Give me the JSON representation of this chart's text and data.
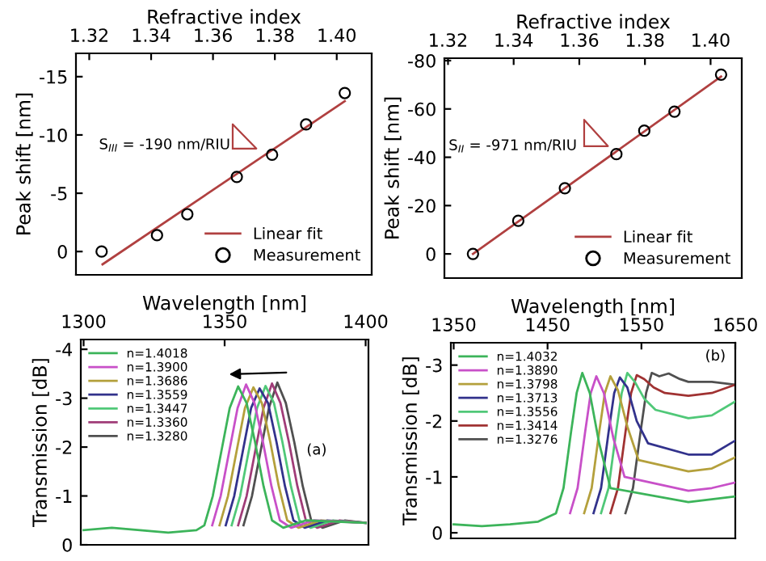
{
  "chart_data": [
    {
      "type": "scatter",
      "xlabel": "Refractive index",
      "ylabel": "Peak shift [nm]",
      "xlim": [
        1.3157,
        1.4113
      ],
      "ylim": [
        2,
        -17
      ],
      "xticks": [
        1.32,
        1.34,
        1.36,
        1.38,
        {
          "value": 1.4,
          "label": "1.40"
        }
      ],
      "yticks": [
        0,
        -5,
        -10,
        -15
      ],
      "legend": "bottom right",
      "grid": false,
      "annotations": [
        "S$_{III}$ = -190 nm/RIU"
      ],
      "series": [
        {
          "name": "Linear fit",
          "type": "line",
          "color": "#b04040",
          "marker": "none",
          "line_style": "solid",
          "x": [
            1.3243,
            1.4026
          ],
          "values": [
            1.1,
            -12.9
          ]
        },
        {
          "name": "Measurement",
          "type": "scatter",
          "color": "#000000",
          "marker": "circle",
          "x": [
            1.324,
            1.3419,
            1.3517,
            1.3677,
            1.3791,
            1.3901,
            1.4026
          ],
          "values": [
            0,
            -1.4,
            -3.2,
            -6.4,
            -8.3,
            -10.9,
            -13.6
          ]
        }
      ]
    },
    {
      "type": "scatter",
      "xlabel": "Refractive index",
      "ylabel": "Peak shift [nm]",
      "xlim": [
        1.3189,
        1.4095
      ],
      "ylim": [
        10,
        -81
      ],
      "xticks": [
        1.32,
        1.34,
        1.36,
        1.38,
        {
          "value": 1.4,
          "label": "1.40"
        }
      ],
      "yticks": [
        0,
        -20,
        -40,
        -60,
        -80
      ],
      "legend": "bottom right",
      "grid": false,
      "annotations": [
        "S$_{II}$ = -971 nm/RIU"
      ],
      "series": [
        {
          "name": "Linear fit",
          "type": "line",
          "color": "#b04040",
          "marker": "none",
          "line_style": "solid",
          "x": [
            1.3276,
            1.4032
          ],
          "values": [
            0,
            -73.4
          ]
        },
        {
          "name": "Measurement",
          "type": "scatter",
          "color": "#000000",
          "marker": "circle",
          "x": [
            1.3276,
            1.3414,
            1.3556,
            1.3713,
            1.3798,
            1.389,
            1.4032
          ],
          "values": [
            0,
            -13.7,
            -27.2,
            -41.3,
            -51.0,
            -58.9,
            -74.2
          ]
        }
      ]
    },
    {
      "type": "line",
      "xlabel": "Wavelength [nm]",
      "ylabel": "Transmission [dB]",
      "xlim": [
        1299,
        1401
      ],
      "ylim": [
        0,
        -4.2
      ],
      "xticks": [
        1300,
        1350,
        1400
      ],
      "yticks": [
        0,
        -1,
        -2,
        -3,
        -4
      ],
      "legend": "top left",
      "grid": false,
      "line_style": "solid",
      "annotations": [
        "(a)"
      ],
      "series": [
        {
          "name": "n=1.4018",
          "color": "#3cb45a",
          "x": [
            1300,
            1310,
            1320,
            1330,
            1340,
            1342.8,
            1345.8,
            1348.8,
            1351.8,
            1354.8,
            1357.8,
            1360.8,
            1363.8,
            1366.8,
            1370.8,
            1378.8,
            1400
          ],
          "values": [
            -0.3,
            -0.35,
            -0.3,
            -0.25,
            -0.3,
            -0.4,
            -1.0,
            -1.9,
            -2.8,
            -3.24,
            -2.9,
            -2.1,
            -1.2,
            -0.5,
            -0.35,
            -0.5,
            -0.45
          ]
        },
        {
          "name": "n=1.3900",
          "color": "#c850c8",
          "x": [
            1345.6,
            1348.6,
            1351.6,
            1354.6,
            1357.6,
            1360.6,
            1363.6,
            1366.6,
            1369.6,
            1373.6,
            1381.6,
            1400
          ],
          "values": [
            -0.4,
            -1.0,
            -1.9,
            -2.8,
            -3.28,
            -2.9,
            -2.1,
            -1.2,
            -0.5,
            -0.35,
            -0.5,
            -0.45
          ]
        },
        {
          "name": "n=1.3686",
          "color": "#b4a03c",
          "x": [
            1348.2,
            1351.2,
            1354.2,
            1357.2,
            1360.2,
            1363.2,
            1366.2,
            1369.2,
            1372.2,
            1376.2,
            1384.2,
            1400
          ],
          "values": [
            -0.4,
            -1.0,
            -1.9,
            -2.8,
            -3.22,
            -2.9,
            -2.1,
            -1.2,
            -0.5,
            -0.35,
            -0.5,
            -0.45
          ]
        },
        {
          "name": "n=1.3559",
          "color": "#32328c",
          "x": [
            1350.4,
            1353.4,
            1356.4,
            1359.4,
            1362.4,
            1365.4,
            1368.4,
            1371.4,
            1374.4,
            1378.4,
            1386.4,
            1400
          ],
          "values": [
            -0.4,
            -1.0,
            -1.9,
            -2.8,
            -3.2,
            -2.9,
            -2.1,
            -1.2,
            -0.5,
            -0.35,
            -0.5,
            -0.45
          ]
        },
        {
          "name": "n=1.3447",
          "color": "#50c878",
          "x": [
            1352.5,
            1355.5,
            1358.5,
            1361.5,
            1364.5,
            1367.5,
            1370.5,
            1373.5,
            1376.5,
            1380.5,
            1388.5,
            1400
          ],
          "values": [
            -0.4,
            -1.0,
            -1.9,
            -2.8,
            -3.25,
            -2.9,
            -2.1,
            -1.2,
            -0.5,
            -0.35,
            -0.5,
            -0.45
          ]
        },
        {
          "name": "n=1.3360",
          "color": "#a03c78",
          "x": [
            1354.8,
            1357.8,
            1360.8,
            1363.8,
            1366.8,
            1369.8,
            1372.8,
            1375.8,
            1378.8,
            1382.8,
            1390.8,
            1400
          ],
          "values": [
            -0.4,
            -1.0,
            -1.9,
            -2.8,
            -3.3,
            -2.9,
            -2.1,
            -1.2,
            -0.5,
            -0.35,
            -0.5,
            -0.45
          ]
        },
        {
          "name": "n=1.3280",
          "color": "#505050",
          "x": [
            1356.7,
            1359.7,
            1362.7,
            1365.7,
            1368.7,
            1371.7,
            1374.7,
            1377.7,
            1380.7,
            1384.7,
            1392.7,
            1400
          ],
          "values": [
            -0.4,
            -1.0,
            -1.9,
            -2.8,
            -3.32,
            -2.9,
            -2.1,
            -1.2,
            -0.5,
            -0.35,
            -0.5,
            -0.45
          ]
        }
      ]
    },
    {
      "type": "line",
      "xlabel": "Wavelength [nm]",
      "ylabel": "Transmission [dB]",
      "xlim": [
        1347,
        1650
      ],
      "ylim": [
        0.1,
        -3.4
      ],
      "xticks": [
        1350,
        1450,
        1550,
        1650
      ],
      "yticks": [
        0,
        -1,
        -2,
        -3
      ],
      "legend": "top left",
      "grid": false,
      "line_style": "solid",
      "annotations": [
        "(b)"
      ],
      "series": [
        {
          "name": "n=1.4032",
          "color": "#3cb45a",
          "x": [
            1350,
            1380,
            1410,
            1440,
            1459,
            1467,
            1475,
            1481,
            1487,
            1495,
            1505,
            1517,
            1600,
            1625,
            1650
          ],
          "values": [
            -0.15,
            -0.12,
            -0.15,
            -0.2,
            -0.35,
            -0.8,
            -1.8,
            -2.5,
            -2.86,
            -2.5,
            -1.6,
            -0.8,
            -0.55,
            -0.6,
            -0.65
          ]
        },
        {
          "name": "n=1.3890",
          "color": "#c850c8",
          "x": [
            1474,
            1482,
            1490,
            1496,
            1502,
            1510,
            1520,
            1532,
            1600,
            1625,
            1650
          ],
          "values": [
            -0.35,
            -0.8,
            -1.8,
            -2.5,
            -2.8,
            -2.5,
            -1.7,
            -1.0,
            -0.75,
            -0.8,
            -0.9
          ]
        },
        {
          "name": "n=1.3798",
          "color": "#b4a03c",
          "x": [
            1489,
            1497,
            1505,
            1511,
            1517,
            1525,
            1535,
            1547,
            1600,
            1625,
            1650
          ],
          "values": [
            -0.35,
            -0.8,
            -1.8,
            -2.5,
            -2.8,
            -2.55,
            -1.9,
            -1.3,
            -1.1,
            -1.15,
            -1.35
          ]
        },
        {
          "name": "n=1.3713",
          "color": "#32328c",
          "x": [
            1499,
            1507,
            1515,
            1521,
            1527,
            1535,
            1545,
            1557,
            1600,
            1625,
            1650
          ],
          "values": [
            -0.35,
            -0.8,
            -1.8,
            -2.5,
            -2.78,
            -2.6,
            -2.0,
            -1.6,
            -1.4,
            -1.4,
            -1.65
          ]
        },
        {
          "name": "n=1.3556",
          "color": "#50c878",
          "x": [
            1507,
            1515,
            1523,
            1529,
            1535,
            1543,
            1553,
            1565,
            1600,
            1625,
            1650
          ],
          "values": [
            -0.35,
            -0.8,
            -1.8,
            -2.5,
            -2.86,
            -2.7,
            -2.4,
            -2.2,
            -2.05,
            -2.1,
            -2.35
          ]
        },
        {
          "name": "n=1.3414",
          "color": "#a03232",
          "x": [
            1517,
            1525,
            1533,
            1539,
            1545,
            1553,
            1563,
            1575,
            1600,
            1625,
            1650
          ],
          "values": [
            -0.35,
            -0.8,
            -1.8,
            -2.5,
            -2.82,
            -2.75,
            -2.6,
            -2.5,
            -2.45,
            -2.5,
            -2.65
          ]
        },
        {
          "name": "n=1.3276",
          "color": "#505050",
          "x": [
            1533,
            1541,
            1549,
            1555,
            1561,
            1569,
            1579,
            1591,
            1600,
            1625,
            1650
          ],
          "values": [
            -0.35,
            -0.8,
            -1.8,
            -2.5,
            -2.86,
            -2.8,
            -2.85,
            -2.75,
            -2.7,
            -2.7,
            -2.65
          ]
        }
      ]
    }
  ]
}
